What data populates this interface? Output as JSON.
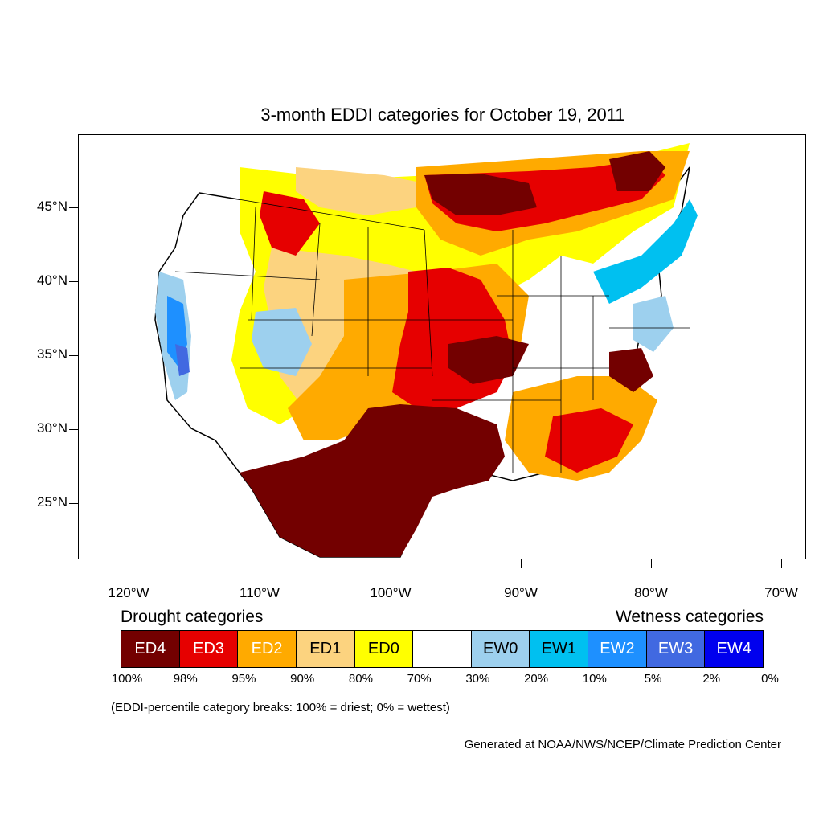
{
  "title": "3-month EDDI categories for October 19, 2011",
  "lat_labels": [
    "45°N",
    "40°N",
    "35°N",
    "30°N",
    "25°N"
  ],
  "lon_labels": [
    "120°W",
    "110°W",
    "100°W",
    "90°W",
    "80°W",
    "70°W"
  ],
  "legend": {
    "drought_heading": "Drought categories",
    "wetness_heading": "Wetness categories",
    "categories": [
      {
        "label": "ED4",
        "color": "#730000",
        "text_color": "#ffffff"
      },
      {
        "label": "ED3",
        "color": "#e60000",
        "text_color": "#ffffff"
      },
      {
        "label": "ED2",
        "color": "#ffaa00",
        "text_color": "#ffffff"
      },
      {
        "label": "ED1",
        "color": "#fcd37f",
        "text_color": "#000000"
      },
      {
        "label": "ED0",
        "color": "#ffff00",
        "text_color": "#000000"
      },
      {
        "label": "",
        "color": "#ffffff",
        "text_color": "#000000"
      },
      {
        "label": "EW0",
        "color": "#9dd0ee",
        "text_color": "#000000"
      },
      {
        "label": "EW1",
        "color": "#00c0f0",
        "text_color": "#000000"
      },
      {
        "label": "EW2",
        "color": "#1e90ff",
        "text_color": "#ffffff"
      },
      {
        "label": "EW3",
        "color": "#4169e1",
        "text_color": "#ffffff"
      },
      {
        "label": "EW4",
        "color": "#0000ee",
        "text_color": "#ffffff"
      }
    ],
    "percentiles": [
      "100%",
      "98%",
      "95%",
      "90%",
      "80%",
      "70%",
      "30%",
      "20%",
      "10%",
      "5%",
      "2%",
      "0%"
    ]
  },
  "note": "(EDDI-percentile category breaks: 100% = driest; 0% = wettest)",
  "credit": "Generated at NOAA/NWS/NCEP/Climate Prediction Center"
}
